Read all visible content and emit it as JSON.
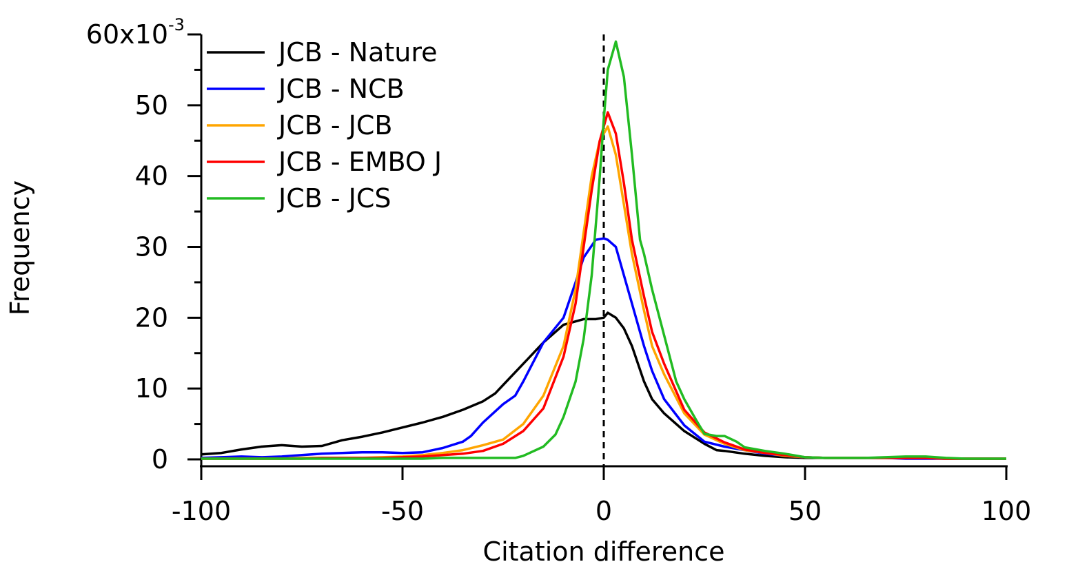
{
  "chart_data": {
    "type": "line",
    "title": "",
    "xlabel": "Citation difference",
    "ylabel": "Frequency",
    "xlim": [
      -100,
      100
    ],
    "ylim": [
      0,
      0.06
    ],
    "x_ticks": [
      -100,
      -50,
      0,
      50,
      100
    ],
    "x_tick_labels": [
      "-100",
      "-50",
      "0",
      "50",
      "100"
    ],
    "y_ticks": [
      0,
      0.01,
      0.02,
      0.03,
      0.04,
      0.05,
      0.06
    ],
    "y_tick_labels": [
      "0",
      "10",
      "20",
      "30",
      "40",
      "50",
      "60x10"
    ],
    "y_scale_exponent": "-3",
    "reference_line": {
      "x": 0,
      "style": "dashed"
    },
    "legend_position": "top-left",
    "series": [
      {
        "name": "JCB - Nature",
        "color": "#000000",
        "x": [
          -100,
          -95,
          -90,
          -85,
          -80,
          -75,
          -70,
          -65,
          -60,
          -55,
          -50,
          -45,
          -40,
          -35,
          -30,
          -27,
          -25,
          -20,
          -15,
          -10,
          -5,
          -2,
          0,
          1,
          3,
          5,
          7,
          10,
          12,
          15,
          20,
          25,
          28,
          30,
          35,
          40,
          45,
          50,
          55,
          60,
          65,
          70,
          75,
          80,
          85,
          90,
          95,
          100
        ],
        "y": [
          0.0007,
          0.0009,
          0.0014,
          0.0018,
          0.002,
          0.0018,
          0.0019,
          0.0027,
          0.0032,
          0.0038,
          0.0045,
          0.0052,
          0.006,
          0.007,
          0.0082,
          0.0093,
          0.0105,
          0.0135,
          0.0165,
          0.019,
          0.0198,
          0.0198,
          0.02,
          0.0207,
          0.02,
          0.0185,
          0.016,
          0.011,
          0.0085,
          0.0065,
          0.004,
          0.0022,
          0.0013,
          0.0012,
          0.0008,
          0.0005,
          0.0003,
          0.0002,
          0.0002,
          0.0002,
          0.0002,
          0.0002,
          0.0002,
          0.0002,
          0.0001,
          0.0001,
          0.0001,
          0.0001
        ]
      },
      {
        "name": "JCB - NCB",
        "color": "#0000ff",
        "x": [
          -100,
          -95,
          -90,
          -85,
          -80,
          -75,
          -70,
          -65,
          -60,
          -55,
          -50,
          -45,
          -40,
          -35,
          -33,
          -30,
          -25,
          -22,
          -20,
          -15,
          -10,
          -7,
          -5,
          -2,
          0,
          1,
          3,
          5,
          7,
          10,
          12,
          15,
          20,
          25,
          30,
          35,
          40,
          45,
          50,
          55,
          60,
          65,
          70,
          75,
          80,
          85,
          90,
          95,
          100
        ],
        "y": [
          0.0002,
          0.0003,
          0.0004,
          0.0003,
          0.0004,
          0.0006,
          0.0008,
          0.0009,
          0.001,
          0.001,
          0.0009,
          0.001,
          0.0016,
          0.0025,
          0.0033,
          0.0052,
          0.0078,
          0.009,
          0.011,
          0.0165,
          0.02,
          0.025,
          0.0285,
          0.031,
          0.0312,
          0.031,
          0.03,
          0.026,
          0.022,
          0.016,
          0.0125,
          0.0085,
          0.0048,
          0.0025,
          0.0018,
          0.0013,
          0.0008,
          0.0005,
          0.0003,
          0.0002,
          0.0002,
          0.0002,
          0.0002,
          0.0001,
          0.0001,
          0.0001,
          0.0001,
          0.0001,
          0.0001
        ]
      },
      {
        "name": "JCB - JCB",
        "color": "#ffa500",
        "x": [
          -100,
          -95,
          -90,
          -85,
          -80,
          -75,
          -70,
          -65,
          -60,
          -55,
          -50,
          -45,
          -40,
          -35,
          -30,
          -25,
          -20,
          -15,
          -10,
          -7,
          -5,
          -3,
          -1,
          0,
          1,
          3,
          5,
          7,
          10,
          12,
          15,
          20,
          25,
          30,
          35,
          40,
          45,
          50,
          55,
          60,
          65,
          70,
          75,
          80,
          85,
          90,
          95,
          100
        ],
        "y": [
          0.0001,
          0.0001,
          0.0001,
          0.0001,
          0.0001,
          0.0002,
          0.0002,
          0.0002,
          0.0002,
          0.0003,
          0.0004,
          0.0006,
          0.0009,
          0.0013,
          0.002,
          0.0028,
          0.005,
          0.009,
          0.016,
          0.024,
          0.032,
          0.04,
          0.045,
          0.046,
          0.047,
          0.043,
          0.036,
          0.029,
          0.021,
          0.016,
          0.012,
          0.0065,
          0.0035,
          0.0022,
          0.0013,
          0.0009,
          0.0005,
          0.0003,
          0.0002,
          0.0002,
          0.0002,
          0.0002,
          0.0002,
          0.0002,
          0.0001,
          0.0001,
          0.0001,
          0.0001
        ]
      },
      {
        "name": "JCB - EMBO J",
        "color": "#ff0000",
        "x": [
          -100,
          -95,
          -90,
          -85,
          -80,
          -75,
          -70,
          -65,
          -60,
          -55,
          -50,
          -45,
          -40,
          -35,
          -30,
          -25,
          -20,
          -15,
          -10,
          -7,
          -5,
          -3,
          -1,
          0,
          1,
          3,
          5,
          7,
          10,
          12,
          15,
          20,
          25,
          30,
          35,
          40,
          45,
          50,
          55,
          60,
          65,
          70,
          75,
          80,
          85,
          90,
          95,
          100
        ],
        "y": [
          0.0001,
          0.0001,
          0.0001,
          0.0001,
          0.0001,
          0.0001,
          0.0002,
          0.0002,
          0.0002,
          0.0002,
          0.0003,
          0.0004,
          0.0006,
          0.0008,
          0.0012,
          0.0022,
          0.004,
          0.0072,
          0.0145,
          0.022,
          0.03,
          0.038,
          0.045,
          0.047,
          0.049,
          0.046,
          0.039,
          0.031,
          0.023,
          0.018,
          0.0135,
          0.007,
          0.0038,
          0.0024,
          0.0014,
          0.0009,
          0.0006,
          0.0003,
          0.0002,
          0.0002,
          0.0002,
          0.0002,
          0.0002,
          0.0002,
          0.0001,
          0.0001,
          0.0001,
          0.0001
        ]
      },
      {
        "name": "JCB - JCS",
        "color": "#22bb22",
        "x": [
          -100,
          -95,
          -90,
          -85,
          -80,
          -75,
          -70,
          -65,
          -60,
          -55,
          -50,
          -45,
          -40,
          -35,
          -30,
          -25,
          -22,
          -20,
          -15,
          -12,
          -10,
          -7,
          -5,
          -3,
          -1,
          0,
          1,
          3,
          5,
          7,
          9,
          10,
          12,
          15,
          18,
          20,
          23,
          25,
          28,
          30,
          33,
          35,
          40,
          45,
          48,
          50,
          55,
          60,
          65,
          70,
          75,
          80,
          85,
          90,
          95,
          100
        ],
        "y": [
          0.0001,
          0.0001,
          0.0001,
          0.0001,
          0.0001,
          0.0001,
          0.0001,
          0.0001,
          0.0001,
          0.0001,
          0.0001,
          0.0001,
          0.0002,
          0.0002,
          0.0002,
          0.0002,
          0.0002,
          0.0005,
          0.0018,
          0.0035,
          0.006,
          0.011,
          0.017,
          0.026,
          0.04,
          0.048,
          0.055,
          0.059,
          0.054,
          0.043,
          0.031,
          0.029,
          0.024,
          0.0175,
          0.011,
          0.0085,
          0.0055,
          0.0036,
          0.0033,
          0.0033,
          0.0025,
          0.0017,
          0.0012,
          0.0008,
          0.0005,
          0.0003,
          0.0002,
          0.0002,
          0.0002,
          0.0003,
          0.0004,
          0.0004,
          0.0002,
          0.0001,
          0.0001,
          0.0001
        ]
      }
    ]
  }
}
